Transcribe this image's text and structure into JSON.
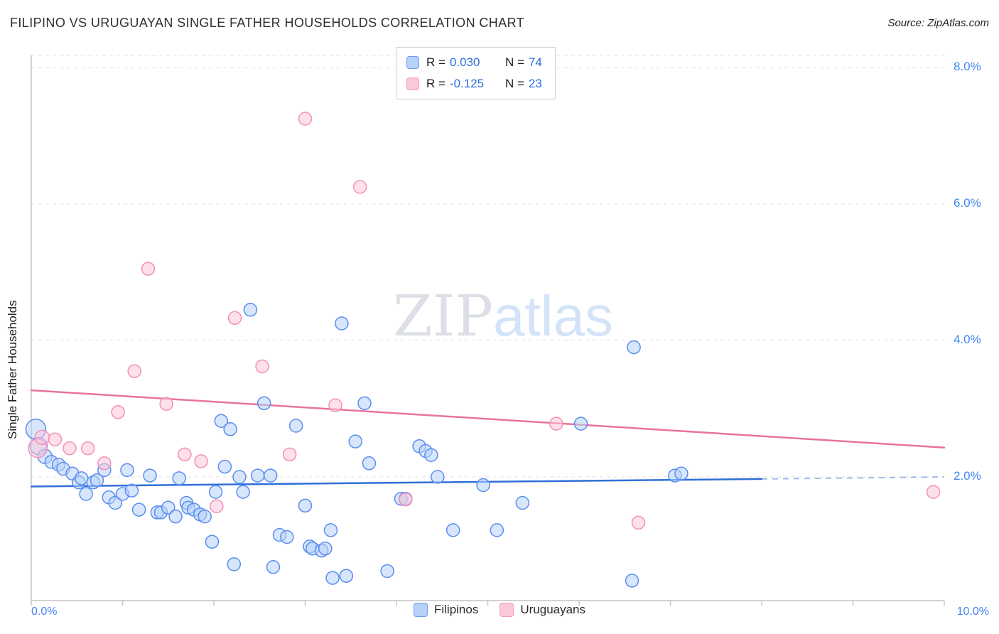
{
  "header": {
    "title": "FILIPINO VS URUGUAYAN SINGLE FATHER HOUSEHOLDS CORRELATION CHART",
    "source": "Source: ZipAtlas.com"
  },
  "watermark": {
    "zip": "ZIP",
    "atlas": "atlas"
  },
  "axes": {
    "y_title": "Single Father Households",
    "x_min_label": "0.0%",
    "x_max_label": "10.0%",
    "y_ticks": [
      "8.0%",
      "6.0%",
      "4.0%",
      "2.0%"
    ]
  },
  "stats_legend": {
    "rows": [
      {
        "series": "filipinos",
        "r_label": "R =",
        "r_value": "0.030",
        "n_label": "N =",
        "n_value": "74"
      },
      {
        "series": "uruguayans",
        "r_label": "R =",
        "r_value": "-0.125",
        "n_label": "N =",
        "n_value": "23"
      }
    ]
  },
  "bottom_legend": [
    {
      "label": "Filipinos"
    },
    {
      "label": "Uruguayans"
    }
  ],
  "colors": {
    "accent_blue": "#4285f4",
    "value_blue": "#2b6fdd",
    "grid": "#e2e2e2",
    "axis": "#c4c4c4",
    "watermark_zip": "#d9dce3",
    "watermark_atlas": "#cfe0f8"
  },
  "chart_data": {
    "type": "scatter",
    "title": "FILIPINO VS URUGUAYAN SINGLE FATHER HOUSEHOLDS CORRELATION CHART",
    "xlabel": "",
    "ylabel": "Single Father Households",
    "xlim": [
      0,
      10
    ],
    "ylim": [
      0,
      8.2
    ],
    "x_tick_values": [
      0,
      1,
      2,
      3,
      4,
      5,
      6,
      7,
      8,
      9,
      10
    ],
    "y_tick_values": [
      2,
      4,
      6,
      8
    ],
    "grid": true,
    "legend_position": "bottom-center",
    "series": [
      {
        "name": "Filipinos",
        "r": 0.03,
        "n": 74,
        "fill": "#b7d2f8",
        "stroke": "#5b8def",
        "points": [
          [
            0.05,
            2.7,
            14
          ],
          [
            0.08,
            2.45,
            12
          ],
          [
            0.15,
            2.3,
            10
          ],
          [
            0.22,
            2.22
          ],
          [
            0.3,
            2.18
          ],
          [
            0.35,
            2.12
          ],
          [
            0.45,
            2.05
          ],
          [
            0.52,
            1.92
          ],
          [
            0.55,
            1.98
          ],
          [
            0.6,
            1.75
          ],
          [
            0.68,
            1.92
          ],
          [
            0.72,
            1.95
          ],
          [
            0.8,
            2.1
          ],
          [
            0.85,
            1.7
          ],
          [
            0.92,
            1.62
          ],
          [
            1.0,
            1.75
          ],
          [
            1.05,
            2.1
          ],
          [
            1.1,
            1.8
          ],
          [
            1.18,
            1.52
          ],
          [
            1.3,
            2.02
          ],
          [
            1.38,
            1.48
          ],
          [
            1.42,
            1.48
          ],
          [
            1.5,
            1.55
          ],
          [
            1.58,
            1.42
          ],
          [
            1.62,
            1.98
          ],
          [
            1.7,
            1.62
          ],
          [
            1.72,
            1.55
          ],
          [
            1.78,
            1.52
          ],
          [
            1.85,
            1.45
          ],
          [
            1.9,
            1.42
          ],
          [
            1.98,
            1.05
          ],
          [
            2.02,
            1.78
          ],
          [
            2.08,
            2.82
          ],
          [
            2.12,
            2.15
          ],
          [
            2.18,
            2.7
          ],
          [
            2.22,
            0.72
          ],
          [
            2.28,
            2.0
          ],
          [
            2.32,
            1.78
          ],
          [
            2.4,
            4.45
          ],
          [
            2.48,
            2.02
          ],
          [
            2.55,
            3.08
          ],
          [
            2.62,
            2.02
          ],
          [
            2.65,
            0.68
          ],
          [
            2.72,
            1.15
          ],
          [
            2.8,
            1.12
          ],
          [
            2.9,
            2.75
          ],
          [
            3.0,
            1.58
          ],
          [
            3.05,
            0.98
          ],
          [
            3.08,
            0.95
          ],
          [
            3.18,
            0.92
          ],
          [
            3.22,
            0.95
          ],
          [
            3.28,
            1.22
          ],
          [
            3.3,
            0.52
          ],
          [
            3.4,
            4.25
          ],
          [
            3.55,
            2.52
          ],
          [
            3.65,
            3.08
          ],
          [
            3.7,
            2.2
          ],
          [
            3.9,
            0.62
          ],
          [
            4.05,
            1.68
          ],
          [
            4.1,
            1.68
          ],
          [
            4.25,
            2.45
          ],
          [
            4.32,
            2.38
          ],
          [
            4.38,
            2.32
          ],
          [
            4.45,
            2.0
          ],
          [
            4.62,
            1.22
          ],
          [
            4.95,
            1.88
          ],
          [
            5.1,
            1.22
          ],
          [
            5.38,
            1.62
          ],
          [
            6.02,
            2.78
          ],
          [
            6.58,
            0.48
          ],
          [
            6.6,
            3.9
          ],
          [
            7.05,
            2.02
          ],
          [
            7.12,
            2.05
          ],
          [
            3.45,
            0.55
          ]
        ]
      },
      {
        "name": "Uruguayans",
        "r": -0.125,
        "n": 23,
        "fill": "#fbc7da",
        "stroke": "#f291b6",
        "points": [
          [
            0.07,
            2.42,
            13
          ],
          [
            0.12,
            2.58,
            10
          ],
          [
            0.26,
            2.55
          ],
          [
            0.42,
            2.42
          ],
          [
            0.62,
            2.42
          ],
          [
            0.8,
            2.2
          ],
          [
            0.95,
            2.95
          ],
          [
            1.13,
            3.55
          ],
          [
            1.28,
            5.05
          ],
          [
            1.48,
            3.07
          ],
          [
            1.68,
            2.33
          ],
          [
            1.86,
            2.23
          ],
          [
            2.03,
            1.57
          ],
          [
            2.23,
            4.33
          ],
          [
            2.53,
            3.62
          ],
          [
            2.83,
            2.33
          ],
          [
            3.0,
            7.25
          ],
          [
            3.33,
            3.05
          ],
          [
            3.6,
            6.25
          ],
          [
            4.1,
            1.67
          ],
          [
            5.75,
            2.78
          ],
          [
            6.65,
            1.33
          ],
          [
            9.88,
            1.78
          ]
        ]
      }
    ],
    "trend_lines": [
      {
        "series": "Filipinos",
        "color": "#2f6fd6",
        "solid": [
          [
            0,
            1.86
          ],
          [
            8.0,
            1.97
          ]
        ],
        "dashed": [
          [
            8.0,
            1.97
          ],
          [
            10,
            2.0
          ]
        ]
      },
      {
        "series": "Uruguayans",
        "color": "#e8739f",
        "solid": [
          [
            0,
            3.27
          ],
          [
            10,
            2.43
          ]
        ]
      }
    ]
  }
}
